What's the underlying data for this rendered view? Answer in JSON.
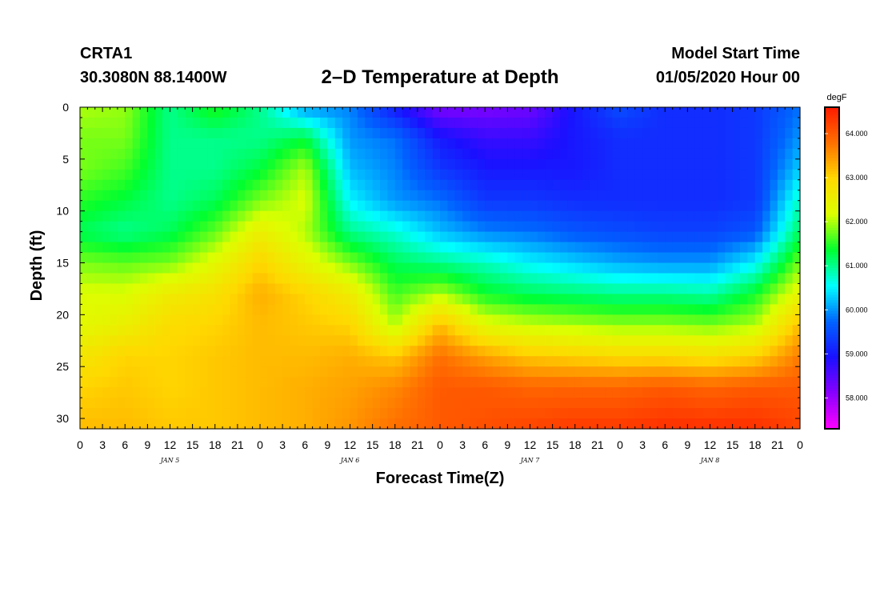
{
  "header": {
    "station": "CRTA1",
    "coords": "30.3080N 88.1400W",
    "title": "2–D Temperature at Depth",
    "model_start_label": "Model Start Time",
    "model_start_value": "01/05/2020 Hour 00"
  },
  "chart_data": {
    "type": "heatmap",
    "title": "2–D Temperature at Depth",
    "xlabel": "Forecast Time(Z)",
    "ylabel": "Depth (ft)",
    "colorbar_label": "degF",
    "x_tick_labels": [
      "0",
      "3",
      "6",
      "9",
      "12",
      "15",
      "18",
      "21",
      "0",
      "3",
      "6",
      "9",
      "12",
      "15",
      "18",
      "21",
      "0",
      "3",
      "6",
      "9",
      "12",
      "15",
      "18",
      "21",
      "0",
      "3",
      "6",
      "9",
      "12",
      "15",
      "18",
      "21",
      "0"
    ],
    "x_day_labels": [
      "JAN 5",
      "JAN 6",
      "JAN 7",
      "JAN 8"
    ],
    "x_range_hours": [
      0,
      96
    ],
    "y_ticks": [
      0,
      5,
      10,
      15,
      20,
      25,
      30
    ],
    "y_range_ft": [
      0,
      31
    ],
    "colorbar_ticks": [
      "58.000",
      "59.000",
      "60.000",
      "61.000",
      "62.000",
      "63.000",
      "64.000"
    ],
    "colorbar_range": [
      57.3,
      64.6
    ],
    "colors": [
      "#ff00ff",
      "#8800ff",
      "#1a10ff",
      "#0064ff",
      "#00ffff",
      "#00ff30",
      "#dcff00",
      "#ffd800",
      "#ff7000",
      "#ff1a00"
    ],
    "depth_ft": [
      0,
      3,
      6,
      9,
      12,
      15,
      18,
      21,
      24,
      27,
      31
    ],
    "time_hours": [
      0,
      6,
      12,
      18,
      24,
      30,
      36,
      42,
      48,
      54,
      60,
      66,
      72,
      78,
      84,
      90,
      96
    ],
    "temperature_degF": [
      [
        62.0,
        61.9,
        61.0,
        61.5,
        61.0,
        60.0,
        59.9,
        59.0,
        58.2,
        58.2,
        58.3,
        59.0,
        59.5,
        59.2,
        59.2,
        59.3,
        59.8
      ],
      [
        61.8,
        61.8,
        61.0,
        61.0,
        61.0,
        61.3,
        60.0,
        59.8,
        59.0,
        58.7,
        58.7,
        59.0,
        59.2,
        59.2,
        59.2,
        59.3,
        60.0
      ],
      [
        61.8,
        61.6,
        61.0,
        61.0,
        61.3,
        62.0,
        60.2,
        59.9,
        59.3,
        59.0,
        59.0,
        59.0,
        59.2,
        59.2,
        59.2,
        59.3,
        60.3
      ],
      [
        61.5,
        61.3,
        61.0,
        61.2,
        61.8,
        62.2,
        60.5,
        60.0,
        59.8,
        59.3,
        59.3,
        59.2,
        59.2,
        59.2,
        59.2,
        59.3,
        60.8
      ],
      [
        61.2,
        61.0,
        61.2,
        61.7,
        62.5,
        62.0,
        61.0,
        60.7,
        60.2,
        59.9,
        59.8,
        59.6,
        59.5,
        59.4,
        59.4,
        59.6,
        61.2
      ],
      [
        61.8,
        61.7,
        61.8,
        62.3,
        63.0,
        62.4,
        61.8,
        61.2,
        61.0,
        60.8,
        60.5,
        60.3,
        60.1,
        60.0,
        60.0,
        60.5,
        61.8
      ],
      [
        62.2,
        62.2,
        62.6,
        62.8,
        63.3,
        63.0,
        62.6,
        61.6,
        62.0,
        61.4,
        61.2,
        61.1,
        61.0,
        61.0,
        60.9,
        61.4,
        62.4
      ],
      [
        62.3,
        62.5,
        62.9,
        63.0,
        63.2,
        63.1,
        63.0,
        62.0,
        63.2,
        62.3,
        62.1,
        62.0,
        61.9,
        61.9,
        61.8,
        62.0,
        63.2
      ],
      [
        62.7,
        63.0,
        63.0,
        63.1,
        63.2,
        63.2,
        63.3,
        63.1,
        63.8,
        63.4,
        63.1,
        63.0,
        62.9,
        62.9,
        62.8,
        63.0,
        63.7
      ],
      [
        63.0,
        63.1,
        63.0,
        63.1,
        63.2,
        63.3,
        63.4,
        63.6,
        64.0,
        64.0,
        63.9,
        63.9,
        63.9,
        64.0,
        63.9,
        64.0,
        64.0
      ],
      [
        63.2,
        63.2,
        63.1,
        63.1,
        63.2,
        63.3,
        63.5,
        63.8,
        64.0,
        64.1,
        64.2,
        64.3,
        64.3,
        64.4,
        64.4,
        64.4,
        64.2
      ]
    ]
  }
}
